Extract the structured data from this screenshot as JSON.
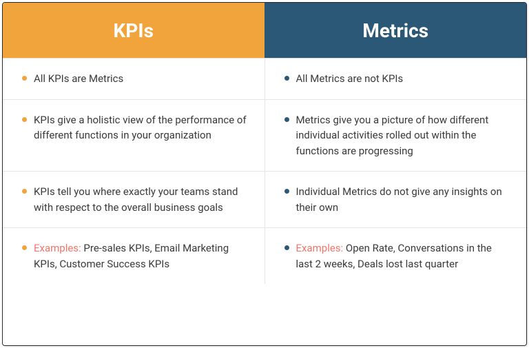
{
  "comparison_table": {
    "type": "table",
    "background_color": "#ffffff",
    "border_color": "#2a2a2a",
    "divider_color": "#e5e5e5",
    "body_text_color": "#3a3a3a",
    "body_fontsize": 15,
    "header_fontsize": 28,
    "header_text_color": "#ffffff",
    "example_label_color": "#f0766b",
    "columns": [
      {
        "title": "KPIs",
        "header_bg": "#f1a33c",
        "bullet_color": "#f1a33c"
      },
      {
        "title": "Metrics",
        "header_bg": "#2b5876",
        "bullet_color": "#2b5876"
      }
    ],
    "rows": [
      {
        "left": {
          "text": "All KPIs are Metrics"
        },
        "right": {
          "text": "All Metrics are not KPIs"
        }
      },
      {
        "left": {
          "text": "KPIs give a holistic view of the performance of different functions in your organization"
        },
        "right": {
          "text": "Metrics give you a picture of how different individual activities rolled out within the functions are progressing"
        }
      },
      {
        "left": {
          "text": "KPIs tell you where exactly your teams stand with respect to the overall business goals"
        },
        "right": {
          "text": "Individual Metrics do not give any insights on their own"
        }
      },
      {
        "left": {
          "example_label": "Examples:",
          "text": " Pre-sales KPIs, Email Marketing KPIs, Customer Success KPIs"
        },
        "right": {
          "example_label": "Examples:",
          "text": " Open Rate, Conversations in the last 2 weeks, Deals lost last quarter"
        }
      }
    ]
  }
}
